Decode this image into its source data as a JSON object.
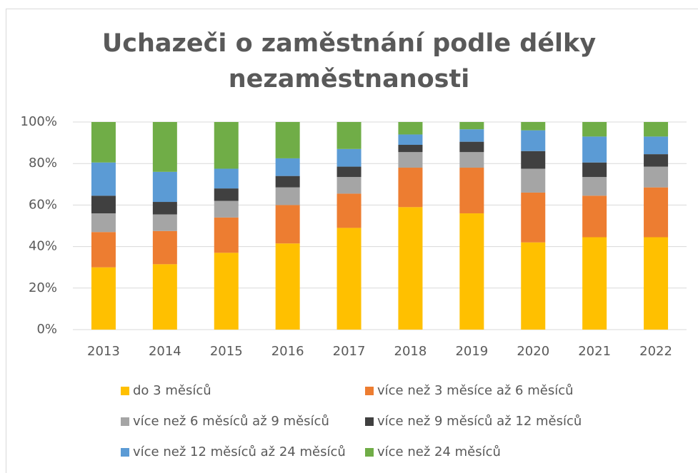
{
  "chart_data": {
    "type": "stacked_bar",
    "title": "Uchazeči o zaměstnání podle délky nezaměstnanosti",
    "categories": [
      "2013",
      "2014",
      "2015",
      "2016",
      "2017",
      "2018",
      "2019",
      "2020",
      "2021",
      "2022"
    ],
    "series": [
      {
        "name": "do 3 měsíců",
        "color": "#ffc000",
        "values": [
          30,
          31.5,
          37,
          41.5,
          49,
          59,
          56,
          42,
          44.5,
          44.5
        ]
      },
      {
        "name": "více než 3 měsíce až 6 měsíců",
        "color": "#ed7d31",
        "values": [
          17,
          16,
          17,
          18.5,
          16.5,
          19,
          22,
          24,
          20,
          24
        ]
      },
      {
        "name": "více než 6 měsíců až 9 měsíců",
        "color": "#a5a5a5",
        "values": [
          9,
          8,
          8,
          8.5,
          8,
          7.5,
          7.5,
          11.5,
          9,
          10
        ]
      },
      {
        "name": "více než 9 měsíců až 12 měsíců",
        "color": "#404040",
        "values": [
          8.5,
          6,
          6,
          5.5,
          5,
          3.5,
          5,
          8.5,
          7,
          6
        ]
      },
      {
        "name": "více než 12 měsíců až 24 měsíců",
        "color": "#5b9bd5",
        "values": [
          16,
          14.5,
          9.5,
          8.5,
          8.5,
          5,
          6,
          10,
          12.5,
          8.5
        ]
      },
      {
        "name": "více než 24 měsíců",
        "color": "#70ad47",
        "values": [
          19.5,
          24,
          22.5,
          17.5,
          13,
          6,
          3.5,
          4,
          7,
          7
        ]
      }
    ],
    "ylim": [
      0,
      100
    ],
    "yticks": [
      {
        "value": 0,
        "label": "0%"
      },
      {
        "value": 20,
        "label": "20%"
      },
      {
        "value": 40,
        "label": "40%"
      },
      {
        "value": 60,
        "label": "60%"
      },
      {
        "value": 80,
        "label": "80%"
      },
      {
        "value": 100,
        "label": "100%"
      }
    ],
    "grid": true
  }
}
